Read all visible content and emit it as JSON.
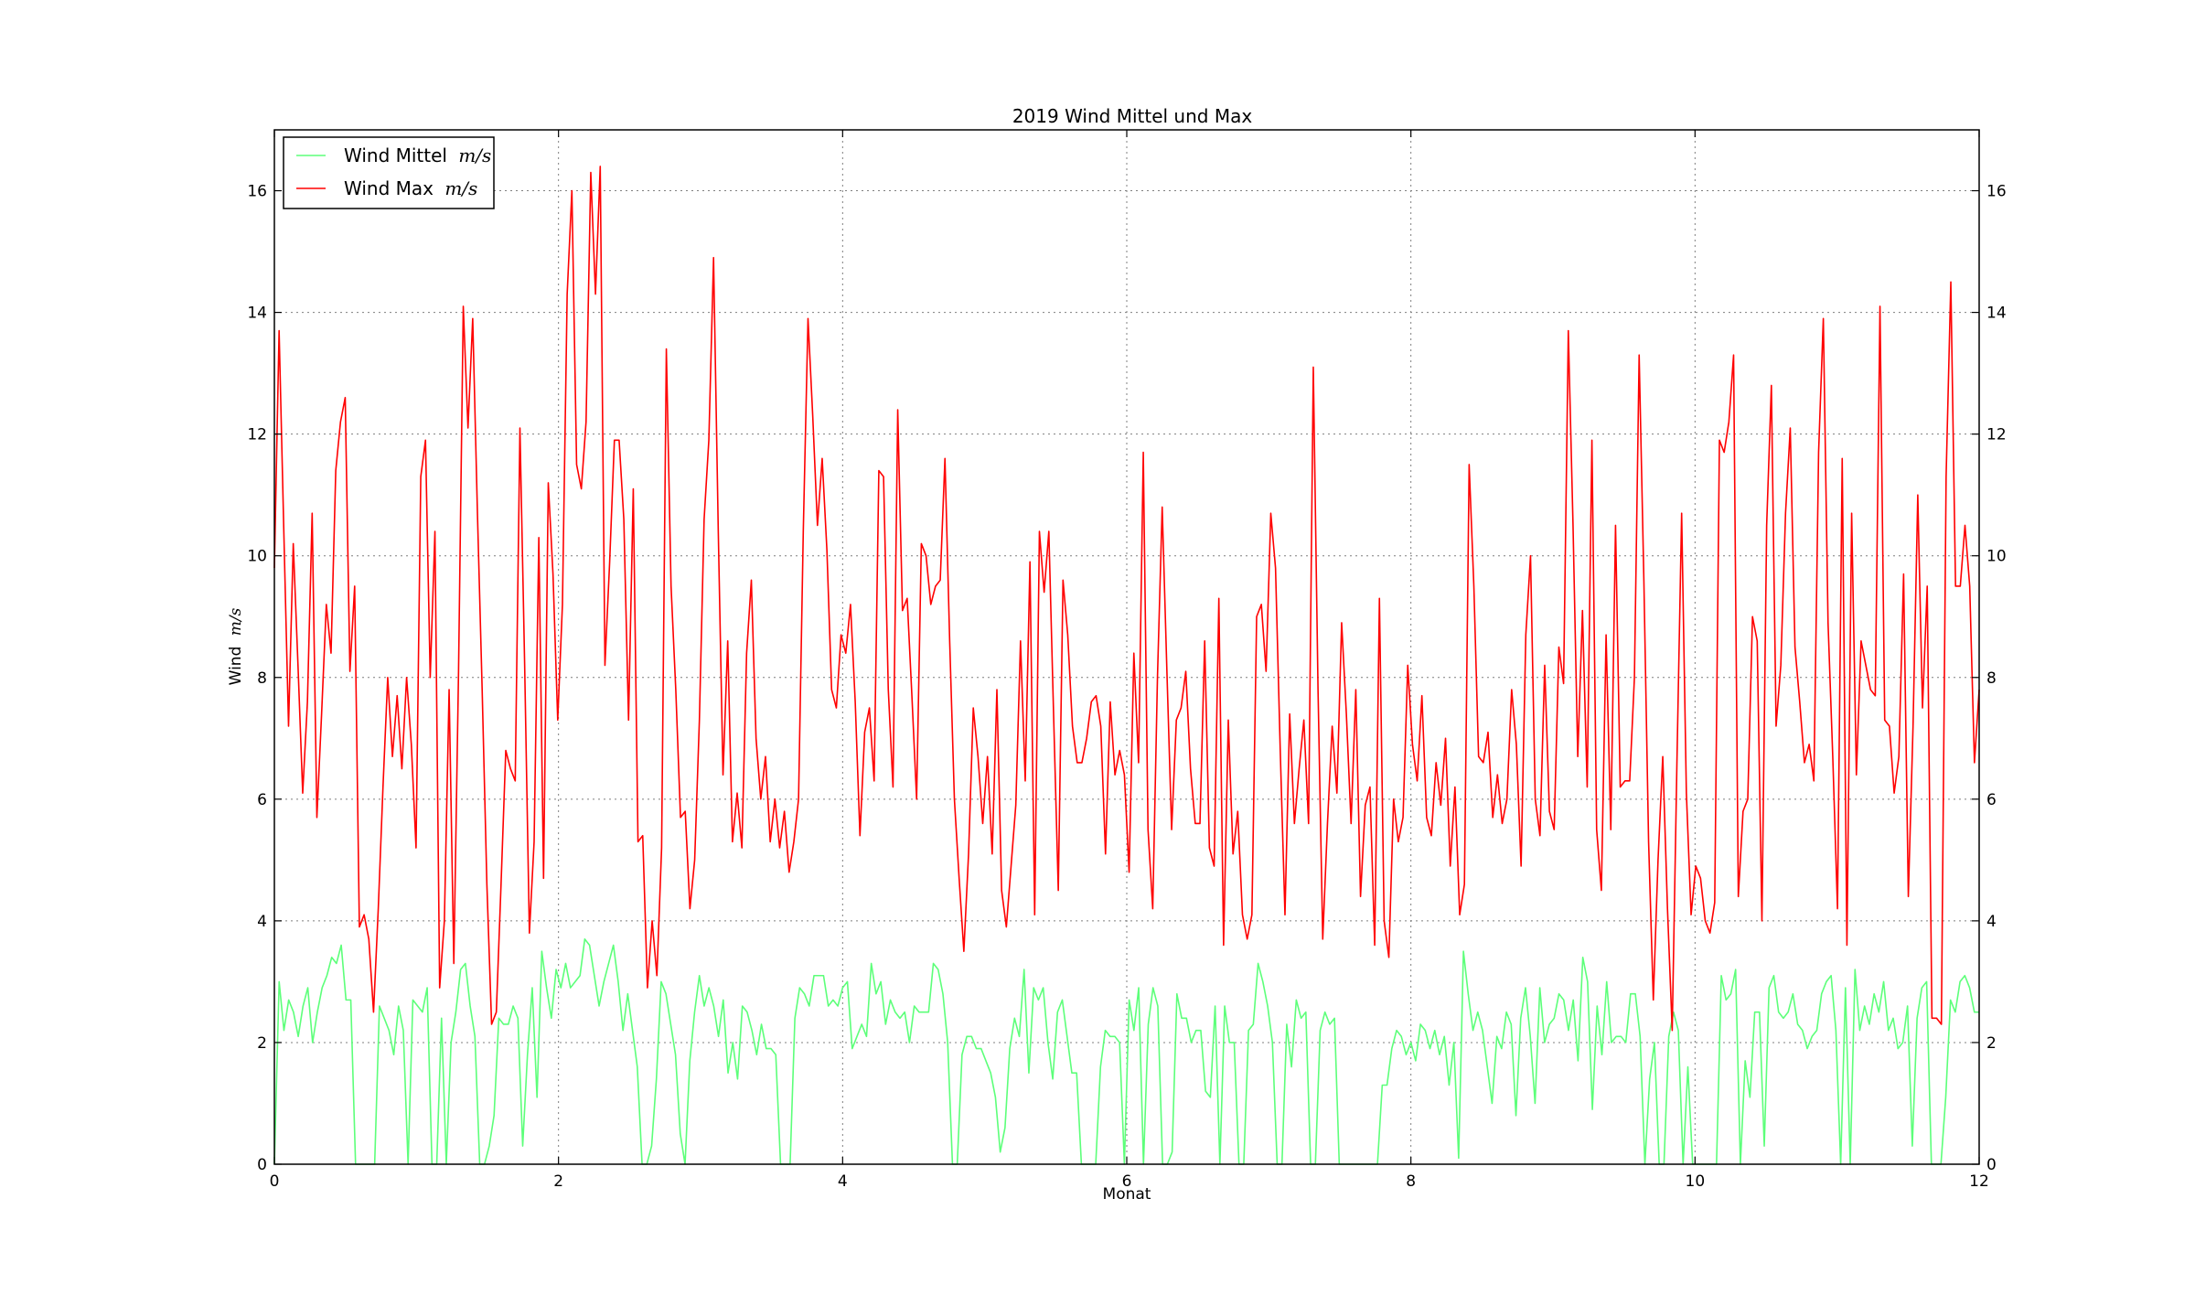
{
  "chart_data": {
    "type": "line",
    "title": "2019 Wind Mittel und Max",
    "xlabel": "Monat",
    "ylabel": "Wind",
    "ylabel_unit": "m/s",
    "xlim": [
      0,
      12
    ],
    "ylim": [
      0,
      17
    ],
    "x_ticks": [
      "0",
      "2",
      "4",
      "6",
      "8",
      "10",
      "12"
    ],
    "y_ticks": [
      "0",
      "2",
      "4",
      "6",
      "8",
      "10",
      "12",
      "14",
      "16"
    ],
    "grid": true,
    "legend_position": "top-left",
    "series": [
      {
        "name": "Wind Mittel",
        "unit": "m/s",
        "color": "#5dff7a",
        "values": [
          0.0,
          3.0,
          2.2,
          2.7,
          2.5,
          2.1,
          2.6,
          2.9,
          2.0,
          2.5,
          2.9,
          3.1,
          3.4,
          3.3,
          3.6,
          2.7,
          2.7,
          0.0,
          0.0,
          0.0,
          0.0,
          0.0,
          2.6,
          2.4,
          2.2,
          1.8,
          2.6,
          2.2,
          0.0,
          2.7,
          2.6,
          2.5,
          2.9,
          0.0,
          0.0,
          2.4,
          0.0,
          2.0,
          2.5,
          3.2,
          3.3,
          2.6,
          2.1,
          0.0,
          0.0,
          0.3,
          0.8,
          2.4,
          2.3,
          2.3,
          2.6,
          2.4,
          0.3,
          1.8,
          2.9,
          1.1,
          3.5,
          2.9,
          2.4,
          3.2,
          2.9,
          3.3,
          2.9,
          3.0,
          3.1,
          3.7,
          3.6,
          3.1,
          2.6,
          3.0,
          3.3,
          3.6,
          3.0,
          2.2,
          2.8,
          2.2,
          1.6,
          0.0,
          0.0,
          0.3,
          1.4,
          3.0,
          2.8,
          2.3,
          1.8,
          0.5,
          0.0,
          1.7,
          2.5,
          3.1,
          2.6,
          2.9,
          2.6,
          2.1,
          2.7,
          1.5,
          2.0,
          1.4,
          2.6,
          2.5,
          2.2,
          1.8,
          2.3,
          1.9,
          1.9,
          1.8,
          0.0,
          0.0,
          0.0,
          2.4,
          2.9,
          2.8,
          2.6,
          3.1,
          3.1,
          3.1,
          2.6,
          2.7,
          2.6,
          2.9,
          3.0,
          1.9,
          2.1,
          2.3,
          2.1,
          3.3,
          2.8,
          3.0,
          2.3,
          2.7,
          2.5,
          2.4,
          2.5,
          2.0,
          2.6,
          2.5,
          2.5,
          2.5,
          3.3,
          3.2,
          2.8,
          2.0,
          0.0,
          0.0,
          1.8,
          2.1,
          2.1,
          1.9,
          1.9,
          1.7,
          1.5,
          1.1,
          0.2,
          0.6,
          1.9,
          2.4,
          2.1,
          3.2,
          1.5,
          2.9,
          2.7,
          2.9,
          2.0,
          1.4,
          2.5,
          2.7,
          2.1,
          1.5,
          1.5,
          0.0,
          0.0,
          0.0,
          0.0,
          1.6,
          2.2,
          2.1,
          2.1,
          2.0,
          0.0,
          2.7,
          2.2,
          2.9,
          0.0,
          2.3,
          2.9,
          2.6,
          0.0,
          0.0,
          0.2,
          2.8,
          2.4,
          2.4,
          2.0,
          2.2,
          2.2,
          1.2,
          1.1,
          2.6,
          0.0,
          2.6,
          2.0,
          2.0,
          0.0,
          0.0,
          2.2,
          2.3,
          3.3,
          3.0,
          2.6,
          2.0,
          0.0,
          0.0,
          2.3,
          1.6,
          2.7,
          2.4,
          2.5,
          0.0,
          0.0,
          2.2,
          2.5,
          2.3,
          2.4,
          0.0,
          0.0,
          0.0,
          0.0,
          0.0,
          0.0,
          0.0,
          0.0,
          0.0,
          1.3,
          1.3,
          1.9,
          2.2,
          2.1,
          1.8,
          2.0,
          1.7,
          2.3,
          2.2,
          1.9,
          2.2,
          1.8,
          2.1,
          1.3,
          2.0,
          0.1,
          3.5,
          2.8,
          2.2,
          2.5,
          2.2,
          1.6,
          1.0,
          2.1,
          1.9,
          2.5,
          2.3,
          0.8,
          2.4,
          2.9,
          2.1,
          1.0,
          2.9,
          2.0,
          2.3,
          2.4,
          2.8,
          2.7,
          2.2,
          2.7,
          1.7,
          3.4,
          3.0,
          0.9,
          2.6,
          1.8,
          3.0,
          2.0,
          2.1,
          2.1,
          2.0,
          2.8,
          2.8,
          2.1,
          0.0,
          1.4,
          2.0,
          0.0,
          0.0,
          2.1,
          2.5,
          2.2,
          0.0,
          1.6,
          0.0,
          0.0,
          0.0,
          0.0,
          0.0,
          0.0,
          3.1,
          2.7,
          2.8,
          3.2,
          0.0,
          1.7,
          1.1,
          2.5,
          2.5,
          0.3,
          2.9,
          3.1,
          2.5,
          2.4,
          2.5,
          2.8,
          2.3,
          2.2,
          1.9,
          2.1,
          2.2,
          2.8,
          3.0,
          3.1,
          2.2,
          0.0,
          2.9,
          0.0,
          3.2,
          2.2,
          2.6,
          2.3,
          2.8,
          2.5,
          3.0,
          2.2,
          2.4,
          1.9,
          2.0,
          2.6,
          0.3,
          2.4,
          2.9,
          3.0,
          0.0,
          0.0,
          0.0,
          1.1,
          2.7,
          2.5,
          3.0,
          3.1,
          2.9,
          2.5,
          2.5
        ]
      },
      {
        "name": "Wind Max",
        "unit": "m/s",
        "color": "#ff0000",
        "values": [
          9.8,
          13.7,
          10.4,
          7.2,
          10.2,
          8.2,
          6.1,
          7.6,
          10.7,
          5.7,
          7.4,
          9.2,
          8.4,
          11.4,
          12.2,
          12.6,
          8.1,
          9.5,
          3.9,
          4.1,
          3.7,
          2.5,
          4.2,
          6.2,
          8.0,
          6.7,
          7.7,
          6.5,
          8.0,
          6.9,
          5.2,
          11.3,
          11.9,
          8.0,
          10.4,
          2.9,
          4.0,
          7.8,
          3.3,
          8.1,
          14.1,
          12.1,
          13.9,
          10.7,
          7.8,
          4.6,
          2.3,
          2.5,
          4.6,
          6.8,
          6.5,
          6.3,
          12.1,
          8.2,
          3.8,
          5.3,
          10.3,
          4.7,
          11.2,
          9.7,
          7.3,
          9.2,
          14.3,
          16.0,
          11.5,
          11.1,
          12.2,
          16.3,
          14.3,
          16.4,
          8.2,
          9.9,
          11.9,
          11.9,
          10.6,
          7.3,
          11.1,
          5.3,
          5.4,
          2.9,
          4.0,
          3.1,
          5.2,
          13.4,
          9.5,
          7.8,
          5.7,
          5.8,
          4.2,
          5.0,
          7.3,
          10.6,
          11.9,
          14.9,
          10.4,
          6.4,
          8.6,
          5.3,
          6.1,
          5.2,
          8.4,
          9.6,
          7.0,
          6.0,
          6.7,
          5.3,
          6.0,
          5.2,
          5.8,
          4.8,
          5.3,
          6.0,
          10.4,
          13.9,
          12.3,
          10.5,
          11.6,
          10.1,
          7.8,
          7.5,
          8.7,
          8.4,
          9.2,
          7.6,
          5.4,
          7.1,
          7.5,
          6.3,
          11.4,
          11.3,
          7.8,
          6.2,
          12.4,
          9.1,
          9.3,
          7.7,
          6.0,
          10.2,
          10.0,
          9.2,
          9.5,
          9.6,
          11.6,
          8.6,
          6.0,
          4.7,
          3.5,
          5.1,
          7.5,
          6.7,
          5.6,
          6.7,
          5.1,
          7.8,
          4.5,
          3.9,
          4.9,
          5.9,
          8.6,
          6.3,
          9.9,
          4.1,
          10.4,
          9.4,
          10.4,
          7.4,
          4.5,
          9.6,
          8.7,
          7.2,
          6.6,
          6.6,
          7.0,
          7.6,
          7.7,
          7.2,
          5.1,
          7.6,
          6.4,
          6.8,
          6.4,
          4.8,
          8.4,
          6.6,
          11.7,
          5.5,
          4.2,
          8.0,
          10.8,
          8.1,
          5.5,
          7.3,
          7.5,
          8.1,
          6.5,
          5.6,
          5.6,
          8.6,
          5.2,
          4.9,
          9.3,
          3.6,
          7.3,
          5.1,
          5.8,
          4.1,
          3.7,
          4.1,
          9.0,
          9.2,
          8.1,
          10.7,
          9.8,
          6.8,
          4.1,
          7.4,
          5.6,
          6.5,
          7.3,
          5.6,
          13.1,
          7.8,
          3.7,
          5.6,
          7.2,
          6.1,
          8.9,
          7.4,
          5.6,
          7.8,
          4.4,
          5.9,
          6.2,
          3.6,
          9.3,
          4.0,
          3.4,
          6.0,
          5.3,
          5.7,
          8.2,
          6.9,
          6.3,
          7.7,
          5.7,
          5.4,
          6.6,
          5.9,
          7.0,
          4.9,
          6.2,
          4.1,
          4.6,
          11.5,
          9.5,
          6.7,
          6.6,
          7.1,
          5.7,
          6.4,
          5.6,
          6.0,
          7.8,
          6.9,
          4.9,
          8.7,
          10.0,
          6.0,
          5.4,
          8.2,
          5.8,
          5.5,
          8.5,
          7.9,
          13.7,
          10.5,
          6.7,
          9.1,
          6.2,
          11.9,
          5.5,
          4.5,
          8.7,
          5.5,
          10.5,
          6.2,
          6.3,
          6.3,
          8.0,
          13.3,
          9.6,
          5.3,
          2.7,
          5.0,
          6.7,
          4.2,
          2.2,
          6.6,
          10.7,
          6.1,
          4.1,
          4.9,
          4.7,
          4.0,
          3.8,
          4.3,
          11.9,
          11.7,
          12.2,
          13.3,
          4.4,
          5.8,
          6.0,
          9.0,
          8.6,
          4.0,
          10.5,
          12.8,
          7.2,
          8.2,
          10.7,
          12.1,
          8.5,
          7.6,
          6.6,
          6.9,
          6.3,
          11.7,
          13.9,
          8.9,
          6.7,
          4.2,
          11.6,
          3.6,
          10.7,
          6.4,
          8.6,
          8.2,
          7.8,
          7.7,
          14.1,
          7.3,
          7.2,
          6.1,
          6.7,
          9.7,
          4.4,
          7.2,
          11.0,
          7.5,
          9.5,
          2.4,
          2.4,
          2.3,
          11.3,
          14.5,
          9.5,
          9.5,
          10.5,
          9.5,
          6.6,
          7.8
        ]
      }
    ]
  }
}
